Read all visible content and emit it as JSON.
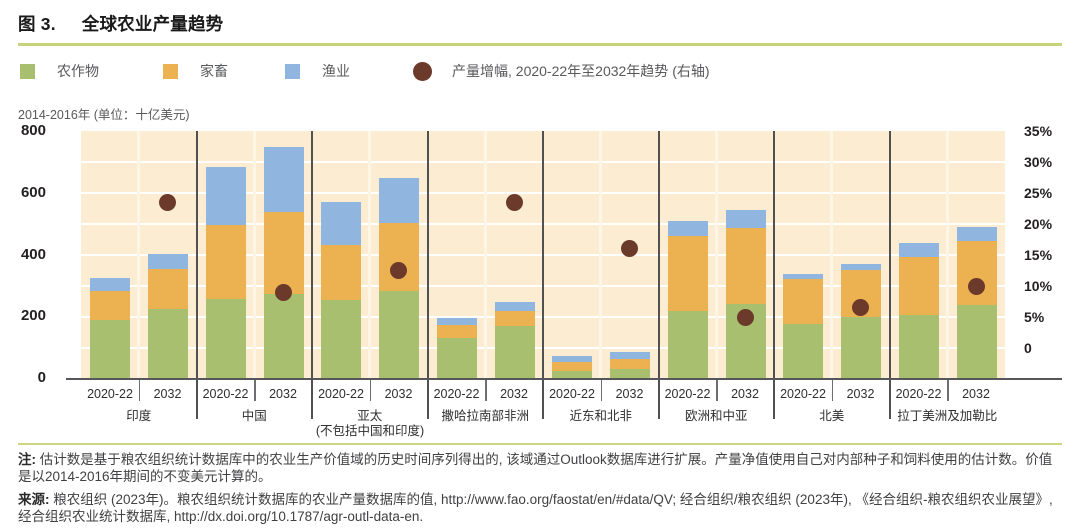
{
  "header": {
    "figure_label": "图 3.",
    "title": "全球农业产量趋势"
  },
  "chart_data": {
    "type": "bar",
    "subtype": "stacked-bars-with-dot-overlay-right-axis",
    "unit_label": "2014-2016年 (单位：十亿美元)",
    "series": [
      {
        "key": "crops",
        "name": "农作物",
        "color": "#a7bf6e"
      },
      {
        "key": "livestock",
        "name": "家畜",
        "color": "#ecb252"
      },
      {
        "key": "fisheries",
        "name": "渔业",
        "color": "#90b5df"
      }
    ],
    "dot_series": {
      "name": "产量增幅, 2020-22年至2032年趋势 (右轴)",
      "color": "#6b3a2b"
    },
    "bar_labels": [
      "2020-22",
      "2032"
    ],
    "left_axis": {
      "ticks": [
        "800",
        "600",
        "400",
        "200",
        "0"
      ],
      "max": 800,
      "min": 0
    },
    "right_axis": {
      "ticks": [
        "35%",
        "30%",
        "25%",
        "20%",
        "15%",
        "10%",
        "5%",
        "0"
      ],
      "max_pct": 35,
      "min_pct": 0,
      "note": "right-axis 0 sits 100 left-axis units above baseline; 1% = 20 left-axis units"
    },
    "grid": "horizontal white lines every 5% of right axis",
    "groups": [
      {
        "region": "印度",
        "region_line2": "",
        "values_2020_22": [
          190,
          95,
          40
        ],
        "values_2032": [
          225,
          130,
          47
        ],
        "growth_pct": 23.5
      },
      {
        "region": "中国",
        "region_line2": "",
        "values_2020_22": [
          258,
          238,
          187
        ],
        "values_2032": [
          274,
          265,
          210
        ],
        "growth_pct": 9
      },
      {
        "region": "亚太",
        "region_line2": "(不包括中国和印度)",
        "values_2020_22": [
          255,
          176,
          140
        ],
        "values_2032": [
          284,
          219,
          147
        ],
        "growth_pct": 12.5
      },
      {
        "region": "撒哈拉南部非洲",
        "region_line2": "",
        "values_2020_22": [
          134,
          39,
          23
        ],
        "values_2032": [
          170,
          49,
          29
        ],
        "growth_pct": 23.5
      },
      {
        "region": "近东和北非",
        "region_line2": "",
        "values_2020_22": [
          27,
          29,
          19
        ],
        "values_2032": [
          32,
          33,
          22
        ],
        "growth_pct": 16
      },
      {
        "region": "欧洲和中亚",
        "region_line2": "",
        "values_2020_22": [
          220,
          240,
          51
        ],
        "values_2032": [
          243,
          244,
          59
        ],
        "growth_pct": 5
      },
      {
        "region": "北美",
        "region_line2": "",
        "values_2020_22": [
          179,
          143,
          18
        ],
        "values_2032": [
          199,
          153,
          18
        ],
        "growth_pct": 6.5
      },
      {
        "region": "拉丁美洲及加勒比",
        "region_line2": "",
        "values_2020_22": [
          206,
          187,
          47
        ],
        "values_2032": [
          238,
          207,
          46
        ],
        "growth_pct": 10
      }
    ]
  },
  "notes": {
    "note_label": "注:",
    "note_text": "估计数是基于粮农组织统计数据库中的农业生产价值域的历史时间序列得出的, 该域通过Outlook数据库进行扩展。产量净值使用自己对内部种子和饲料使用的估计数。价值是以2014-2016年期间的不变美元计算的。",
    "source_label": "来源:",
    "source_text": "粮农组织 (2023年)。粮农组织统计数据库的农业产量数据库的值, http://www.fao.org/faostat/en/#data/QV; 经合组织/粮农组织 (2023年), 《经合组织-粮农组织农业展望》, 经合组织农业统计数据库, http://dx.doi.org/10.1787/agr-outl-data-en."
  },
  "colors": {
    "plot_background": "#fcecd2",
    "gridline": "#ffffff",
    "title_rule": "#c6d37b",
    "notes_rule": "#cdd87e",
    "separator": "#515153",
    "axis_line": "#56575a"
  }
}
